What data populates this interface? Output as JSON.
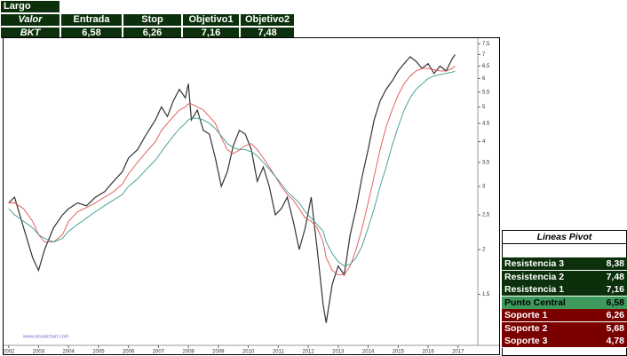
{
  "header": {
    "title": "Largo",
    "columns": [
      "Valor",
      "Entrada",
      "Stop",
      "Objetivo1",
      "Objetivo2"
    ],
    "row": [
      "BKT",
      "6,58",
      "6,26",
      "7,16",
      "7,48"
    ]
  },
  "chart_data": {
    "type": "line",
    "watermark": "www.visualchart.com",
    "x": [
      2002.0,
      2002.2,
      2002.5,
      2002.8,
      2003.0,
      2003.2,
      2003.5,
      2003.8,
      2004.0,
      2004.3,
      2004.6,
      2004.9,
      2005.2,
      2005.5,
      2005.8,
      2006.0,
      2006.3,
      2006.6,
      2006.9,
      2007.1,
      2007.3,
      2007.5,
      2007.7,
      2007.9,
      2008.0,
      2008.1,
      2008.3,
      2008.5,
      2008.7,
      2008.9,
      2009.1,
      2009.3,
      2009.5,
      2009.7,
      2009.9,
      2010.1,
      2010.3,
      2010.5,
      2010.7,
      2010.9,
      2011.1,
      2011.3,
      2011.5,
      2011.7,
      2011.9,
      2012.1,
      2012.3,
      2012.5,
      2012.6,
      2012.8,
      2013.0,
      2013.2,
      2013.4,
      2013.6,
      2013.8,
      2014.0,
      2014.2,
      2014.4,
      2014.6,
      2014.8,
      2015.0,
      2015.2,
      2015.4,
      2015.6,
      2015.8,
      2016.0,
      2016.2,
      2016.4,
      2016.6,
      2016.8,
      2016.9
    ],
    "series": [
      {
        "color": "#333333",
        "values": [
          2.7,
          2.8,
          2.3,
          1.9,
          1.75,
          2.0,
          2.3,
          2.5,
          2.6,
          2.7,
          2.65,
          2.8,
          2.9,
          3.1,
          3.3,
          3.6,
          3.8,
          4.2,
          4.6,
          5.0,
          4.7,
          5.2,
          5.6,
          5.3,
          5.8,
          4.6,
          4.9,
          4.3,
          4.2,
          3.6,
          3.0,
          3.3,
          3.9,
          4.3,
          4.2,
          3.8,
          3.1,
          3.4,
          3.0,
          2.5,
          2.6,
          2.8,
          2.4,
          2.0,
          2.3,
          2.8,
          2.0,
          1.4,
          1.25,
          1.6,
          1.8,
          1.7,
          2.2,
          2.6,
          3.2,
          3.8,
          4.6,
          5.2,
          5.6,
          5.9,
          6.3,
          6.6,
          6.9,
          6.7,
          6.4,
          6.6,
          6.2,
          6.5,
          6.3,
          6.8,
          7.0
        ]
      },
      {
        "color": "#e05050",
        "values": [
          2.7,
          2.7,
          2.6,
          2.4,
          2.2,
          2.1,
          2.1,
          2.2,
          2.4,
          2.55,
          2.62,
          2.7,
          2.8,
          2.9,
          3.05,
          3.25,
          3.5,
          3.75,
          4.0,
          4.3,
          4.5,
          4.7,
          4.9,
          5.0,
          5.1,
          5.1,
          5.0,
          4.9,
          4.7,
          4.5,
          4.1,
          3.8,
          3.7,
          3.8,
          3.9,
          3.95,
          3.8,
          3.6,
          3.4,
          3.2,
          3.0,
          2.85,
          2.75,
          2.6,
          2.45,
          2.4,
          2.3,
          2.1,
          1.9,
          1.75,
          1.7,
          1.7,
          1.8,
          2.0,
          2.3,
          2.7,
          3.2,
          3.8,
          4.4,
          4.9,
          5.4,
          5.8,
          6.1,
          6.3,
          6.4,
          6.4,
          6.35,
          6.3,
          6.3,
          6.4,
          6.5
        ]
      },
      {
        "color": "#3a9a8a",
        "values": [
          2.6,
          2.5,
          2.4,
          2.3,
          2.2,
          2.15,
          2.1,
          2.15,
          2.25,
          2.35,
          2.45,
          2.55,
          2.65,
          2.75,
          2.85,
          3.0,
          3.15,
          3.35,
          3.55,
          3.75,
          3.95,
          4.15,
          4.35,
          4.5,
          4.6,
          4.65,
          4.65,
          4.6,
          4.5,
          4.35,
          4.15,
          3.95,
          3.85,
          3.8,
          3.8,
          3.75,
          3.65,
          3.5,
          3.35,
          3.2,
          3.05,
          2.9,
          2.8,
          2.7,
          2.55,
          2.45,
          2.35,
          2.25,
          2.1,
          1.95,
          1.85,
          1.8,
          1.82,
          1.9,
          2.05,
          2.3,
          2.6,
          3.0,
          3.4,
          3.9,
          4.4,
          4.9,
          5.3,
          5.6,
          5.8,
          6.0,
          6.1,
          6.15,
          6.2,
          6.25,
          6.3
        ]
      }
    ],
    "log_y": true,
    "grid": false,
    "xlim": [
      2001.95,
      2017.6
    ],
    "xticks": [
      2002,
      2003,
      2004,
      2005,
      2006,
      2007,
      2008,
      2009,
      2010,
      2011,
      2012,
      2013,
      2014,
      2015,
      2016,
      2017
    ],
    "ylim": [
      1.1,
      7.6
    ],
    "yticks": [
      {
        "value": 1.5,
        "label": "1,5"
      },
      2,
      {
        "value": 2.5,
        "label": "2,5"
      },
      3,
      {
        "value": 3.5,
        "label": "3,5"
      },
      4,
      {
        "value": 4.5,
        "label": "4,5"
      },
      5,
      {
        "value": 5.5,
        "label": "5,5"
      },
      6,
      {
        "value": 6.5,
        "label": "6,5"
      },
      7,
      {
        "value": 7.5,
        "label": "7,5"
      }
    ]
  },
  "pivot": {
    "title": "Lineas Pivot",
    "rows": [
      [
        "Resistencia 3",
        "8,38"
      ],
      [
        "Resistencia 2",
        "7,48"
      ],
      [
        "Resistencia 1",
        "7,16"
      ],
      [
        "Punto Central",
        "6,58"
      ],
      [
        "Soporte 1",
        "6,26"
      ],
      [
        "Soporte 2",
        "5,68"
      ],
      [
        "Soporte 3",
        "4,78"
      ]
    ]
  }
}
